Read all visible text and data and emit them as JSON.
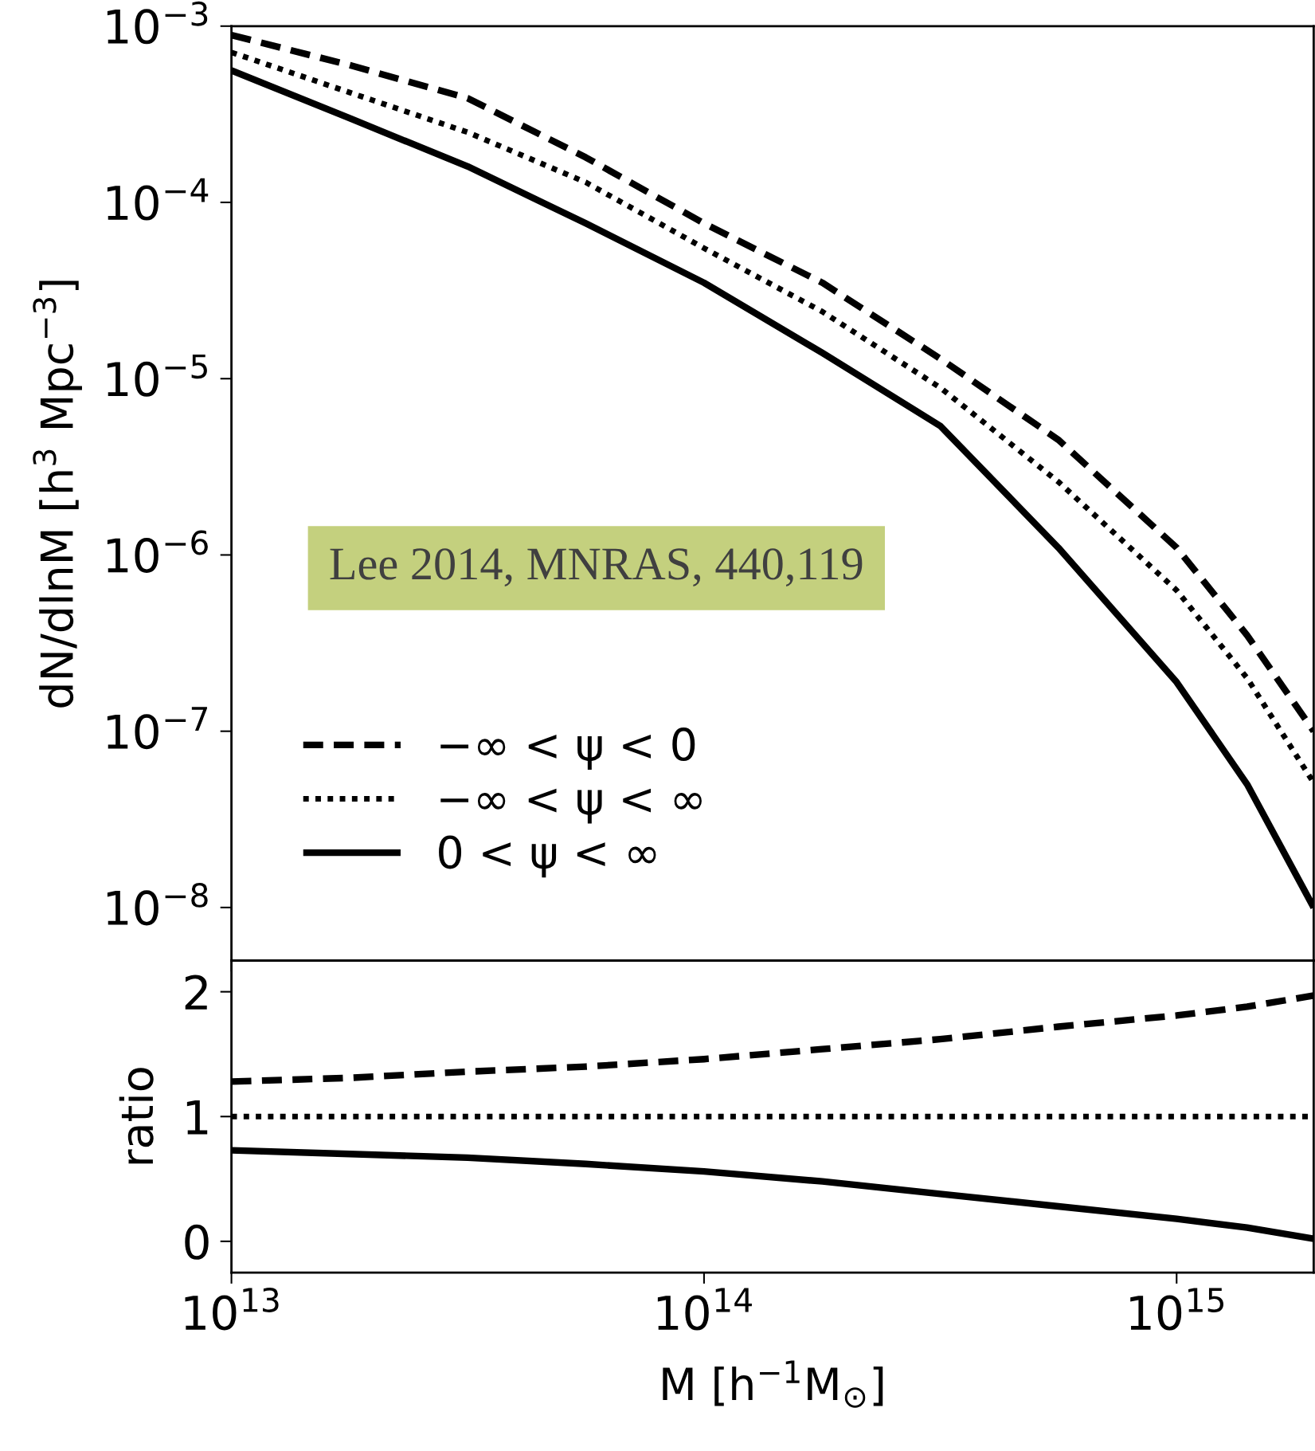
{
  "chart_data": [
    {
      "type": "line",
      "ylabel": "dN/dlnM [h$^{3}$ Mpc$^{−3}$]",
      "log": "xy",
      "legend": "bottom left",
      "tick_labels": "y",
      "xlim": [
        10000000000000.0,
        1950000000000000.0
      ],
      "ylim": [
        5e-09,
        0.001
      ],
      "xticks": [
        {
          "value": 10000000000000.0,
          "label": null
        },
        {
          "value": 100000000000000.0,
          "label": null
        },
        {
          "value": 1000000000000000.0,
          "label": null
        }
      ],
      "yticks": [
        {
          "value": 1e-08,
          "label": "10$^{−8}$"
        },
        {
          "value": 1e-07,
          "label": "10$^{−7}$"
        },
        {
          "value": 1e-06,
          "label": "10$^{−6}$"
        },
        {
          "value": 1e-05,
          "label": "10$^{−5}$"
        },
        {
          "value": 0.0001,
          "label": "10$^{−4}$"
        },
        {
          "value": 0.001,
          "label": "10$^{−3}$"
        }
      ],
      "x": [
        10000000000000.0,
        17800000000000.0,
        31600000000000.0,
        56200000000000.0,
        100000000000000.0,
        178000000000000.0,
        316000000000000.0,
        562000000000000.0,
        1000000000000000.0,
        1410000000000000.0,
        1950000000000000.0
      ],
      "annotations": [
        "Lee 2014, MNRAS, 440,119"
      ],
      "series": [
        {
          "name": "−∞ < ψ < 0",
          "color": "#000000",
          "line_style": "dashed",
          "values": [
            0.00089,
            0.0006,
            0.00039,
            0.00018,
            7.6e-05,
            3.5e-05,
            1.3e-05,
            4.5e-06,
            1.1e-06,
            3.5e-07,
            1e-07
          ]
        },
        {
          "name": "−∞ < ψ < ∞",
          "color": "#000000",
          "line_style": "dotted",
          "values": [
            0.00071,
            0.00042,
            0.00025,
            0.00013,
            5.5e-05,
            2.4e-05,
            8.9e-06,
            2.6e-06,
            6.3e-07,
            2e-07,
            5.1e-08
          ]
        },
        {
          "name": "0 < ψ < ∞",
          "color": "#000000",
          "line_style": "solid",
          "values": [
            0.00056,
            0.0003,
            0.00016,
            7.6e-05,
            3.5e-05,
            1.4e-05,
            5.4e-06,
            1.1e-06,
            1.9e-07,
            5e-08,
            1e-08
          ]
        }
      ]
    },
    {
      "type": "line",
      "xlabel": "M [h$^{−1}$M$_{⊙}$]",
      "ylabel": "ratio",
      "log": "x",
      "xlim": [
        10000000000000.0,
        1950000000000000.0
      ],
      "ylim": [
        -0.25,
        2.25
      ],
      "xticks": [
        {
          "value": 10000000000000.0,
          "label": "10$^{13}$"
        },
        {
          "value": 100000000000000.0,
          "label": "10$^{14}$"
        },
        {
          "value": 1000000000000000.0,
          "label": "10$^{15}$"
        }
      ],
      "yticks": [
        0,
        1,
        2
      ],
      "x": [
        10000000000000.0,
        17800000000000.0,
        31600000000000.0,
        56200000000000.0,
        100000000000000.0,
        178000000000000.0,
        316000000000000.0,
        562000000000000.0,
        1000000000000000.0,
        1410000000000000.0,
        1950000000000000.0
      ],
      "series": [
        {
          "color": "#000000",
          "line_style": "dashed",
          "values": [
            1.28,
            1.31,
            1.36,
            1.4,
            1.46,
            1.54,
            1.62,
            1.72,
            1.81,
            1.88,
            1.97
          ]
        },
        {
          "color": "#000000",
          "line_style": "dotted",
          "values": [
            1,
            1,
            1,
            1,
            1,
            1,
            1,
            1,
            1,
            1,
            1
          ]
        },
        {
          "color": "#000000",
          "line_style": "solid",
          "values": [
            0.73,
            0.7,
            0.67,
            0.62,
            0.56,
            0.48,
            0.38,
            0.28,
            0.18,
            0.11,
            0.02
          ]
        }
      ]
    }
  ]
}
